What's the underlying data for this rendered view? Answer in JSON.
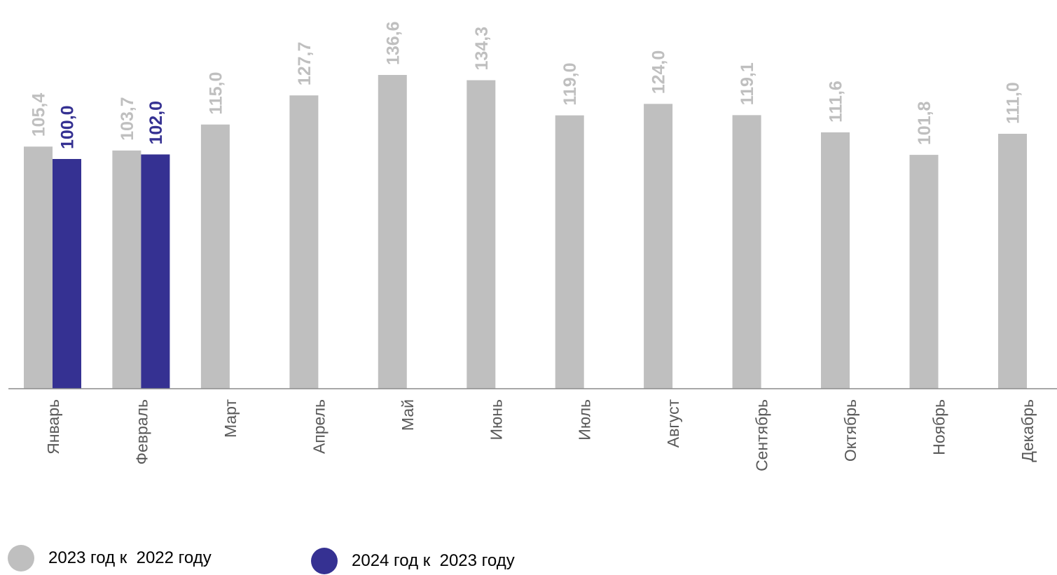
{
  "chart_data": {
    "type": "bar",
    "categories": [
      "Январь",
      "Февраль",
      "Март",
      "Апрель",
      "Май",
      "Июнь",
      "Июль",
      "Август",
      "Сентябрь",
      "Октябрь",
      "Ноябрь",
      "Декабрь"
    ],
    "series": [
      {
        "name": "2023 год к  2022 году",
        "color": "#bfbfbf",
        "values": [
          105.4,
          103.7,
          115.0,
          127.7,
          136.6,
          134.3,
          119.0,
          124.0,
          119.1,
          111.6,
          101.8,
          111.0
        ],
        "labels": [
          "105,4",
          "103,7",
          "115,0",
          "127,7",
          "136,6",
          "134,3",
          "119,0",
          "124,0",
          "119,1",
          "111,6",
          "101,8",
          "111,0"
        ]
      },
      {
        "name": "2024 год к  2023 году",
        "color": "#353192",
        "values": [
          100.0,
          102.0,
          null,
          null,
          null,
          null,
          null,
          null,
          null,
          null,
          null,
          null
        ],
        "labels": [
          "100,0",
          "102,0",
          "",
          "",
          "",
          "",
          "",
          "",
          "",
          "",
          "",
          ""
        ]
      }
    ],
    "ylim": [
      0,
      136.6
    ],
    "grid": false,
    "legend_position": "bottom-left",
    "title": "",
    "xlabel": "",
    "ylabel": ""
  }
}
